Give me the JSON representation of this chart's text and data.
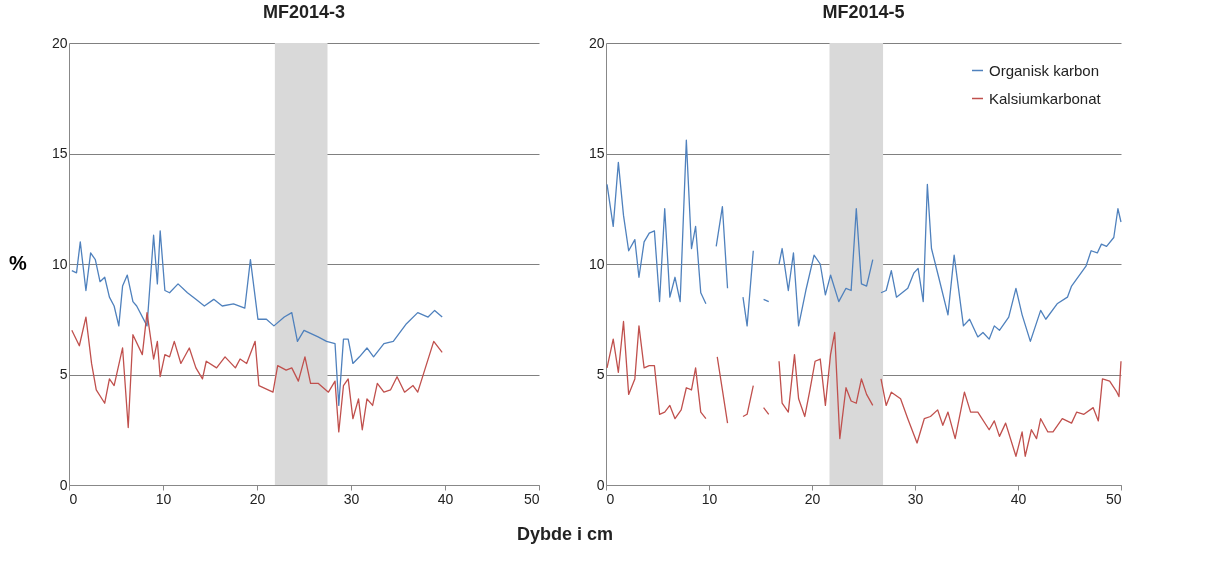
{
  "chart_data": [
    {
      "type": "line",
      "title": "MF2014-3",
      "xlabel": "Dybde i cm",
      "ylabel": "%",
      "xlim": [
        0,
        50
      ],
      "xticks": [
        0,
        10,
        20,
        30,
        40,
        50
      ],
      "ylim": [
        0,
        20
      ],
      "yticks": [
        0,
        5,
        10,
        15,
        20
      ],
      "grid": "y",
      "bands": [
        {
          "axis": "x",
          "from": 21.9,
          "to": 27.5,
          "color": "#d9d9d9"
        }
      ],
      "series": [
        {
          "color": "#4f81bd",
          "x": [
            0.3,
            0.8,
            1.2,
            1.8,
            2.3,
            2.8,
            3.3,
            3.8,
            4.3,
            4.8,
            5.3,
            5.7,
            6.2,
            6.8,
            7.2,
            8.3,
            9.0,
            9.4,
            9.7,
            10.2,
            10.7,
            11.6,
            12.6,
            13.5,
            14.4,
            15.4,
            16.3,
            17.5,
            18.7,
            19.3,
            20.1,
            21.0,
            21.8,
            22.9,
            23.7,
            24.3,
            25.0,
            26.5,
            27.4,
            28.3,
            28.7,
            29.2,
            29.7,
            30.2,
            30.9,
            31.7,
            32.4,
            33.5,
            34.5,
            35.9,
            37.1,
            38.2,
            38.9,
            39.7
          ],
          "values": [
            9.7,
            9.6,
            11.0,
            8.8,
            10.5,
            10.2,
            9.2,
            9.4,
            8.5,
            8.1,
            7.2,
            9.0,
            9.5,
            8.3,
            8.1,
            7.2,
            11.3,
            9.1,
            11.5,
            8.8,
            8.7,
            9.1,
            8.7,
            8.4,
            8.1,
            8.4,
            8.1,
            8.2,
            8.0,
            10.2,
            7.5,
            7.5,
            7.2,
            7.6,
            7.8,
            6.5,
            7.0,
            6.7,
            6.5,
            6.4,
            3.6,
            6.6,
            6.6,
            5.5,
            5.8,
            6.2,
            5.8,
            6.4,
            6.5,
            7.3,
            7.8,
            7.6,
            7.9,
            7.6
          ]
        },
        {
          "color": "#c0504d",
          "x": [
            0.3,
            1.1,
            1.8,
            2.4,
            2.9,
            3.8,
            4.3,
            4.8,
            5.7,
            6.3,
            6.8,
            7.8,
            8.3,
            9.0,
            9.4,
            9.7,
            10.2,
            10.7,
            11.2,
            11.9,
            12.8,
            13.5,
            14.2,
            14.6,
            15.7,
            16.6,
            17.7,
            18.2,
            18.9,
            19.8,
            20.2,
            21.7,
            22.2,
            23.1,
            23.7,
            24.4,
            25.1,
            25.7,
            26.5,
            27.6,
            28.3,
            28.7,
            29.2,
            29.7,
            30.2,
            30.8,
            31.2,
            31.7,
            32.3,
            32.8,
            33.5,
            34.2,
            34.9,
            35.7,
            36.6,
            37.1,
            38.8,
            39.7
          ],
          "values": [
            7.0,
            6.3,
            7.6,
            5.5,
            4.3,
            3.7,
            4.8,
            4.5,
            6.2,
            2.6,
            6.8,
            5.9,
            7.8,
            5.7,
            6.5,
            4.9,
            5.9,
            5.8,
            6.5,
            5.5,
            6.2,
            5.3,
            4.8,
            5.6,
            5.3,
            5.8,
            5.3,
            5.7,
            5.5,
            6.5,
            4.5,
            4.2,
            5.4,
            5.2,
            5.3,
            4.7,
            5.8,
            4.6,
            4.6,
            4.2,
            4.7,
            2.4,
            4.5,
            4.8,
            3.0,
            3.9,
            2.5,
            3.9,
            3.6,
            4.6,
            4.2,
            4.3,
            4.9,
            4.2,
            4.5,
            4.2,
            6.5,
            6.0
          ]
        }
      ]
    },
    {
      "type": "line",
      "title": "MF2014-5",
      "xlim": [
        0,
        50
      ],
      "xticks": [
        0,
        10,
        20,
        30,
        40,
        50
      ],
      "ylim": [
        0,
        20
      ],
      "yticks": [
        0,
        5,
        10,
        15,
        20
      ],
      "grid": "y",
      "legend": "top right",
      "bands": [
        {
          "axis": "x",
          "from": 21.7,
          "to": 26.9,
          "color": "#d9d9d9"
        }
      ],
      "series": [
        {
          "name": "Organisk karbon",
          "color": "#4f81bd",
          "x": [
            0.1,
            0.7,
            1.2,
            1.7,
            2.2,
            2.8,
            3.2,
            3.7,
            4.2,
            4.7,
            5.2,
            5.7,
            6.2,
            6.7,
            7.2,
            7.8,
            8.3,
            8.7,
            9.2,
            9.7,
            10.2,
            10.7,
            11.3,
            11.8,
            12.5,
            13.3,
            13.7,
            14.3,
            14.8,
            15.3,
            15.8,
            16.3,
            16.8,
            17.1,
            17.7,
            18.2,
            18.7,
            19.4,
            20.2,
            20.8,
            21.3,
            21.8,
            22.6,
            23.3,
            23.8,
            24.3,
            24.8,
            25.3,
            25.9,
            26.3,
            26.7,
            27.2,
            27.7,
            28.2,
            29.3,
            29.9,
            30.3,
            30.8,
            31.2,
            31.6,
            32.3,
            33.2,
            33.8,
            34.7,
            35.3,
            36.1,
            36.6,
            37.2,
            37.7,
            38.2,
            39.1,
            39.8,
            40.4,
            41.2,
            42.2,
            42.7,
            43.8,
            44.8,
            45.2,
            46.6,
            47.1,
            47.7,
            48.1,
            48.6,
            49.3,
            49.7,
            50.0
          ],
          "values": [
            13.6,
            11.7,
            14.6,
            12.2,
            10.6,
            11.1,
            9.4,
            11.0,
            11.4,
            11.5,
            8.3,
            12.5,
            8.5,
            9.4,
            8.3,
            15.6,
            10.7,
            11.7,
            8.7,
            8.2,
            null,
            10.8,
            12.6,
            8.9,
            null,
            8.5,
            7.2,
            10.6,
            null,
            8.4,
            8.3,
            null,
            10.0,
            10.7,
            8.8,
            10.5,
            7.2,
            8.8,
            10.4,
            10.0,
            8.6,
            9.5,
            8.3,
            8.9,
            8.8,
            12.5,
            9.1,
            9.0,
            10.2,
            null,
            8.7,
            8.8,
            9.7,
            8.5,
            8.9,
            9.6,
            9.8,
            8.3,
            13.6,
            10.7,
            9.4,
            7.7,
            10.4,
            7.2,
            7.5,
            6.7,
            6.9,
            6.6,
            7.2,
            7.0,
            7.6,
            8.9,
            7.7,
            6.5,
            7.9,
            7.5,
            8.2,
            8.5,
            9.0,
            9.9,
            10.6,
            10.5,
            10.9,
            10.8,
            11.2,
            12.5,
            11.9
          ]
        },
        {
          "name": "Kalsiumkarbonat",
          "color": "#c0504d",
          "x": [
            0.1,
            0.7,
            1.2,
            1.7,
            2.2,
            2.8,
            3.2,
            3.7,
            4.2,
            4.7,
            5.2,
            5.7,
            6.2,
            6.7,
            7.3,
            7.8,
            8.3,
            8.7,
            9.2,
            9.7,
            10.2,
            10.8,
            11.3,
            11.8,
            12.5,
            13.3,
            13.7,
            14.3,
            14.8,
            15.3,
            15.8,
            16.3,
            16.8,
            17.1,
            17.7,
            18.3,
            18.7,
            19.3,
            19.8,
            20.3,
            20.8,
            21.3,
            21.8,
            22.2,
            22.7,
            23.3,
            23.8,
            24.3,
            24.8,
            25.3,
            25.9,
            26.3,
            26.7,
            27.2,
            27.7,
            28.6,
            29.3,
            30.2,
            30.9,
            31.5,
            32.2,
            32.7,
            33.2,
            33.9,
            34.8,
            35.4,
            36.1,
            37.2,
            37.7,
            38.2,
            38.8,
            39.8,
            40.4,
            40.7,
            41.3,
            41.8,
            42.2,
            42.9,
            43.4,
            44.3,
            45.2,
            45.7,
            46.4,
            47.3,
            47.8,
            48.2,
            48.9,
            49.6,
            49.8,
            50.0
          ],
          "values": [
            5.3,
            6.6,
            5.1,
            7.4,
            4.1,
            4.8,
            7.2,
            5.3,
            5.4,
            5.4,
            3.2,
            3.3,
            3.6,
            3.0,
            3.4,
            4.4,
            4.3,
            5.3,
            3.3,
            3.0,
            null,
            5.8,
            4.3,
            2.8,
            null,
            3.1,
            3.2,
            4.5,
            null,
            3.5,
            3.2,
            null,
            5.6,
            3.7,
            3.3,
            5.9,
            3.9,
            3.1,
            4.3,
            5.6,
            5.7,
            3.6,
            5.9,
            6.9,
            2.1,
            4.4,
            3.8,
            3.7,
            4.8,
            4.1,
            3.6,
            null,
            4.8,
            3.6,
            4.2,
            3.9,
            3.0,
            1.9,
            3.0,
            3.1,
            3.4,
            2.7,
            3.3,
            2.1,
            4.2,
            3.3,
            3.3,
            2.5,
            2.9,
            2.2,
            2.8,
            1.3,
            2.4,
            1.3,
            2.5,
            2.1,
            3.0,
            2.4,
            2.4,
            3.0,
            2.8,
            3.3,
            3.2,
            3.5,
            2.9,
            4.8,
            4.7,
            4.2,
            4.0,
            5.6
          ]
        }
      ]
    }
  ]
}
